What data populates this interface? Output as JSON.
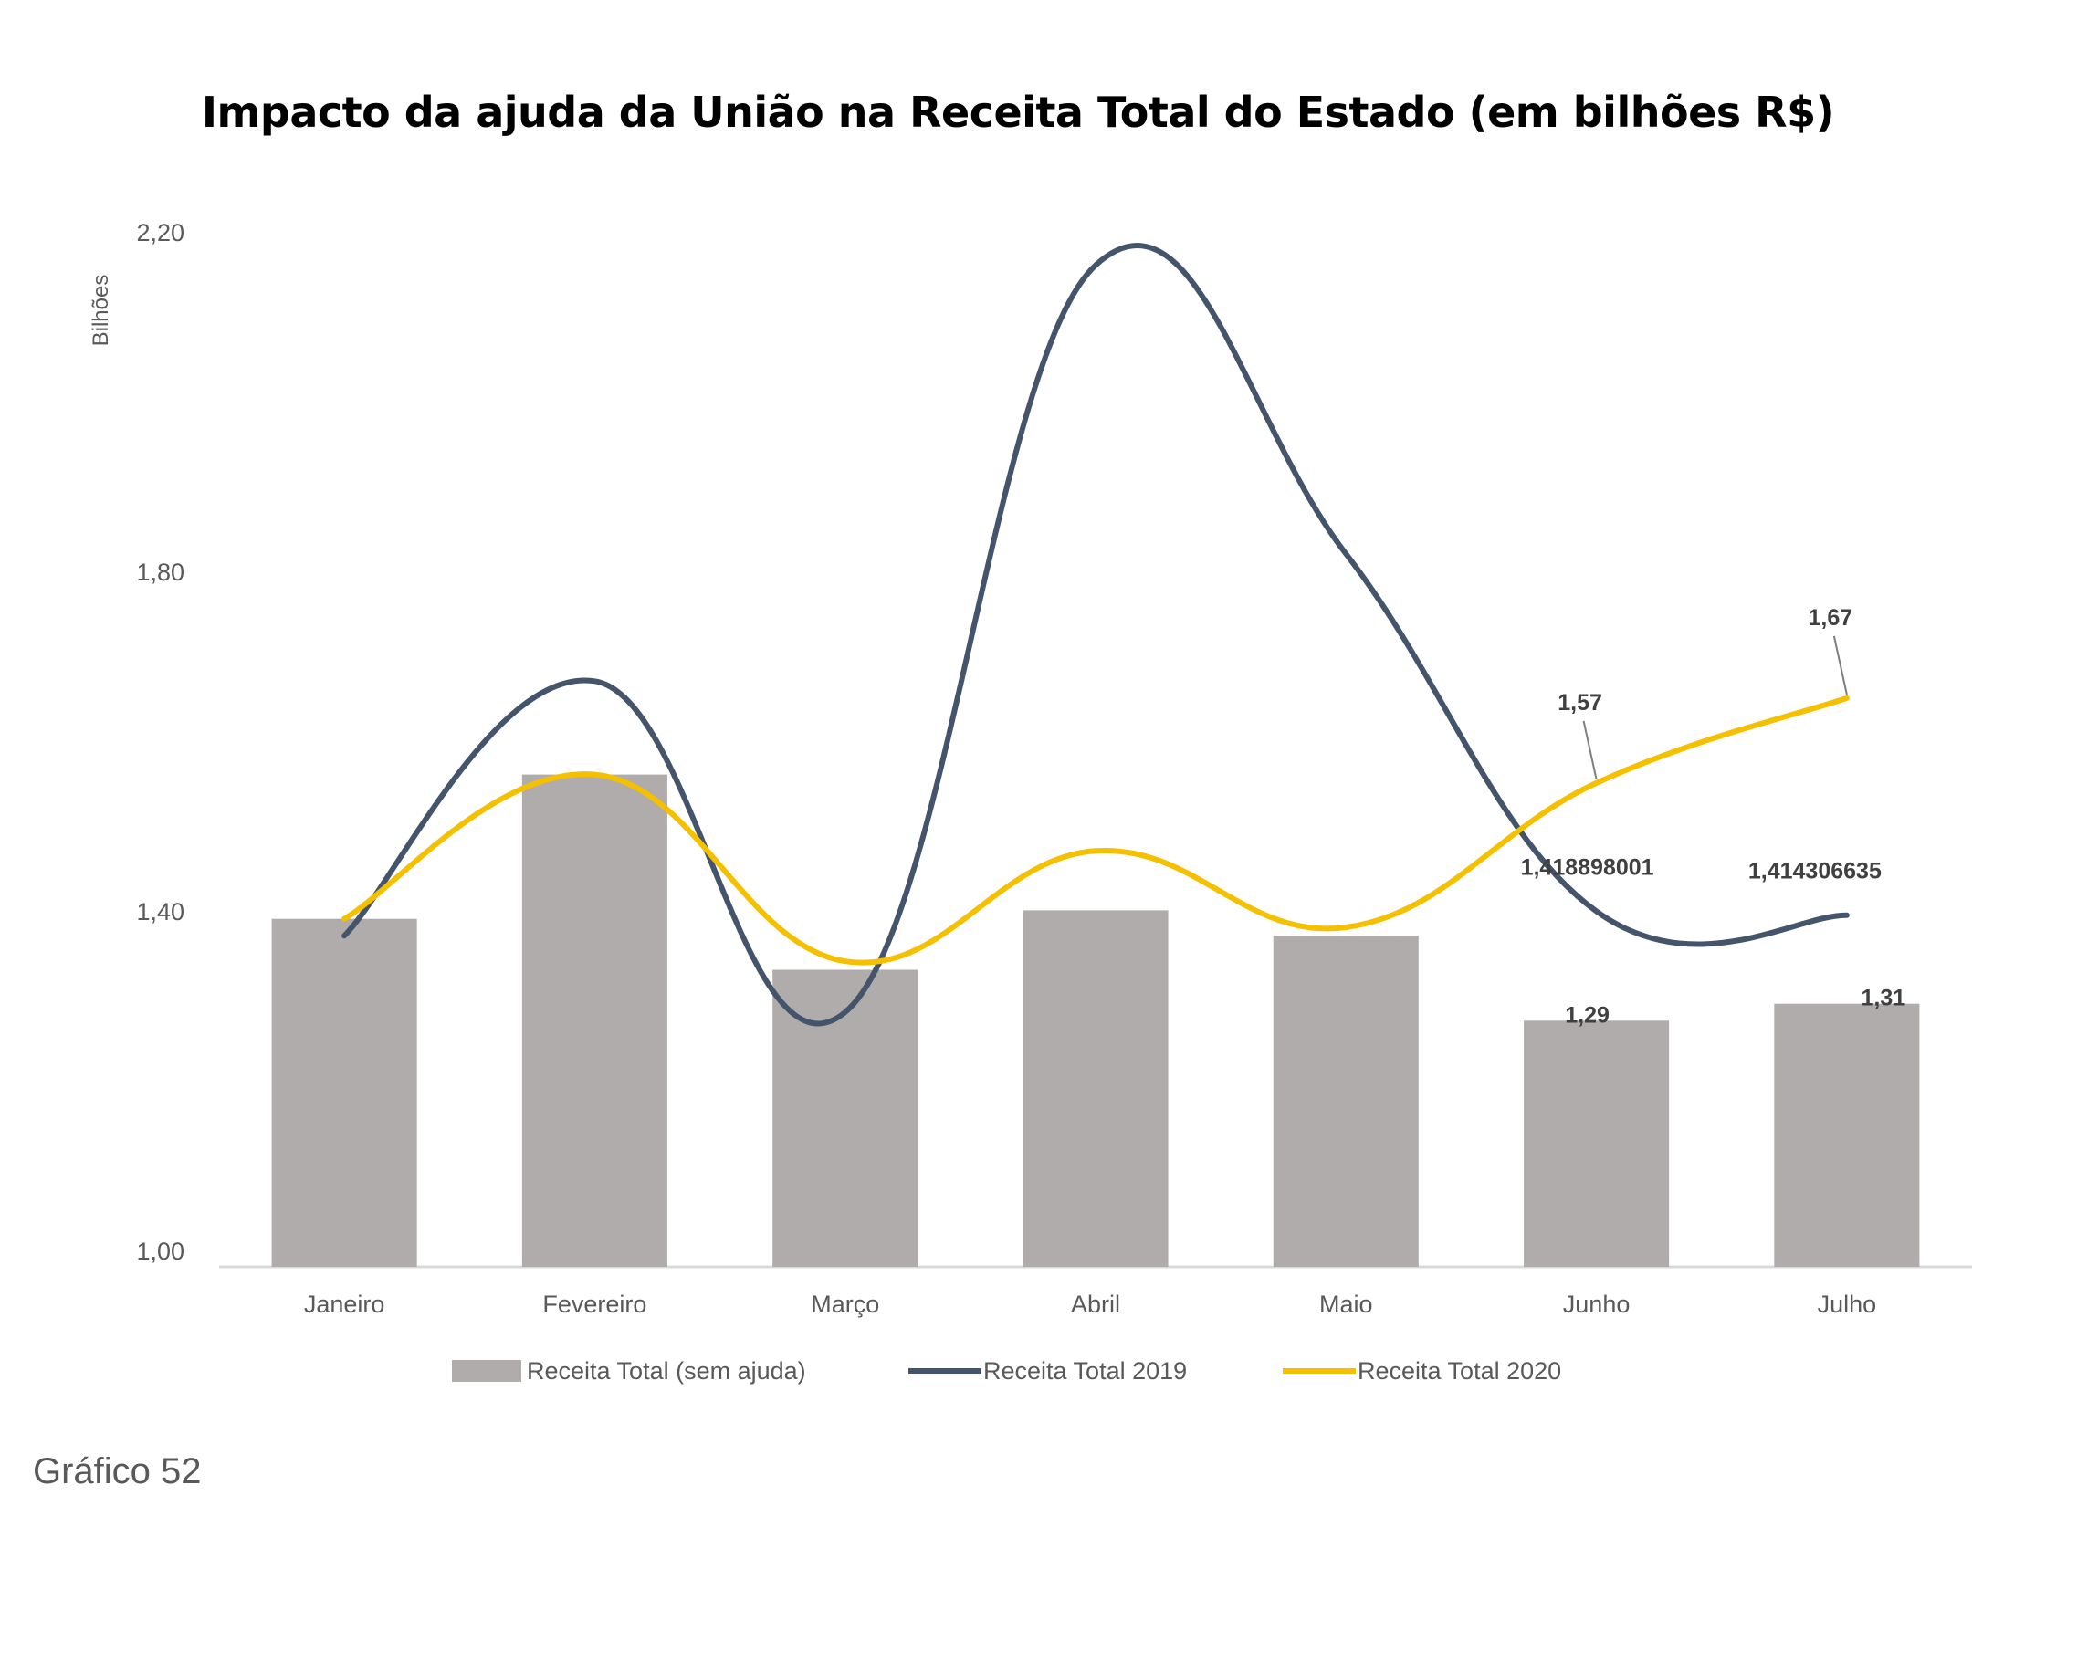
{
  "caption": "Gráfico 52",
  "colors": {
    "bar": "#b0acab",
    "line2019": "#44546a",
    "line2020": "#f5c000",
    "axis": "#d9d9d9",
    "text": "#595959"
  },
  "chart_data": {
    "type": "bar",
    "title": "Impacto da ajuda da União na Receita Total do Estado (em bilhões R$)",
    "xlabel": "",
    "ylabel": "Bilhões",
    "ylim": [
      1.0,
      2.2
    ],
    "yticks": [
      {
        "value": 1.0,
        "label": "1,00"
      },
      {
        "value": 1.4,
        "label": "1,40"
      },
      {
        "value": 1.8,
        "label": "1,80"
      },
      {
        "value": 2.2,
        "label": "2,20"
      }
    ],
    "grid": false,
    "legend_position": "bottom",
    "categories": [
      "Janeiro",
      "Fevereiro",
      "Março",
      "Abril",
      "Maio",
      "Junho",
      "Julho"
    ],
    "series": [
      {
        "name": "Receita Total (sem ajuda)",
        "type": "bar",
        "values": [
          1.41,
          1.58,
          1.35,
          1.42,
          1.39,
          1.29,
          1.31
        ],
        "labels": {
          "5": "1,29",
          "6": "1,31"
        }
      },
      {
        "name": "Receita Total 2019",
        "type": "line",
        "values": [
          1.39,
          1.69,
          1.3,
          2.18,
          1.84,
          1.418898001,
          1.414306635
        ],
        "labels": {
          "5": "1,418898001",
          "6": "1,414306635"
        }
      },
      {
        "name": "Receita Total 2020",
        "type": "line",
        "values": [
          1.41,
          1.58,
          1.36,
          1.49,
          1.4,
          1.57,
          1.67
        ],
        "labels": {
          "5": "1,57",
          "6": "1,67"
        }
      }
    ]
  }
}
